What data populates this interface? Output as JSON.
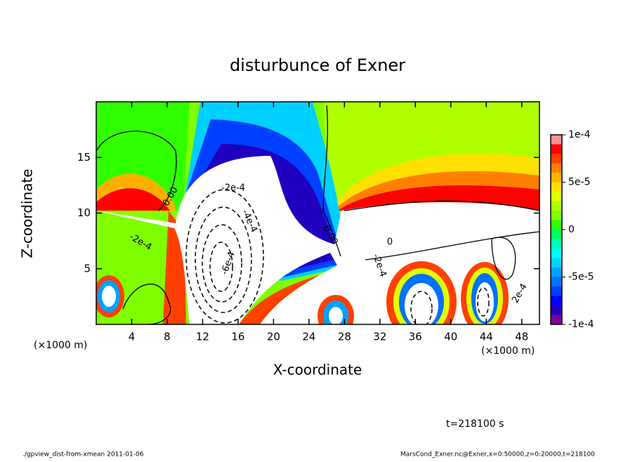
{
  "chart_data": {
    "type": "contour",
    "title": "disturbunce of Exner",
    "xlabel": "X-coordinate",
    "ylabel": "Z-coordinate",
    "xunit": "(×1000 m)",
    "yunit": "(×1000 m)",
    "xlim": [
      0,
      50
    ],
    "ylim": [
      0,
      20
    ],
    "xticks": [
      4,
      8,
      12,
      16,
      20,
      24,
      28,
      32,
      36,
      40,
      44,
      48
    ],
    "yticks": [
      5,
      10,
      15
    ],
    "clim": [
      -0.0001,
      0.0001
    ],
    "levels": [
      -0.0001,
      -9e-05,
      -8e-05,
      -7e-05,
      -6e-05,
      -5e-05,
      -4e-05,
      -3e-05,
      -2e-05,
      -1e-05,
      0,
      1e-05,
      2e-05,
      3e-05,
      4e-05,
      5e-05,
      6e-05,
      7e-05,
      8e-05,
      9e-05,
      0.0001
    ],
    "colors": [
      "#8000a0",
      "#2000c0",
      "#0000ff",
      "#0040ff",
      "#0070ff",
      "#00a0ff",
      "#00d0ff",
      "#00ffff",
      "#00ffb0",
      "#00ff60",
      "#30ff00",
      "#80ff00",
      "#b0ff00",
      "#e0ff00",
      "#ffe000",
      "#ffb000",
      "#ff8000",
      "#ff4000",
      "#ff0000",
      "#ff9090"
    ],
    "cbar_ticks": [
      {
        "value": 0.0001,
        "label": "1e-4"
      },
      {
        "value": 5e-05,
        "label": "5e-5"
      },
      0,
      {
        "value": -5e-05,
        "label": "-5e-5"
      },
      {
        "value": -0.0001,
        "label": "-1e-4"
      }
    ],
    "contour_labels": [
      "0.00",
      "-2e-4",
      "-4e-4",
      "-6e-4",
      "-2e-4",
      "0.00",
      "-2e-4",
      "0",
      "2e-4"
    ],
    "time_label": "t=218100 s",
    "footer_left": "./gpview_dist-from-xmean  2011-01-06",
    "footer_right": "MarsCond_Exner.nc@Exner,x=0:50000,z=0:20000,t=218100"
  }
}
